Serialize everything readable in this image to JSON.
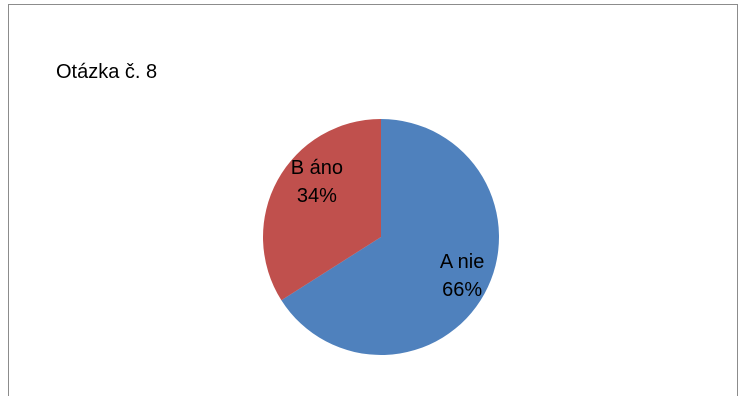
{
  "chart_data": {
    "type": "pie",
    "title": "Otázka č. 8",
    "slices": [
      {
        "name": "A nie",
        "value": 66,
        "label": "66%",
        "color": "#4f81bd"
      },
      {
        "name": "B áno",
        "value": 34,
        "label": "34%",
        "color": "#c0504d"
      }
    ],
    "legend": "none"
  }
}
